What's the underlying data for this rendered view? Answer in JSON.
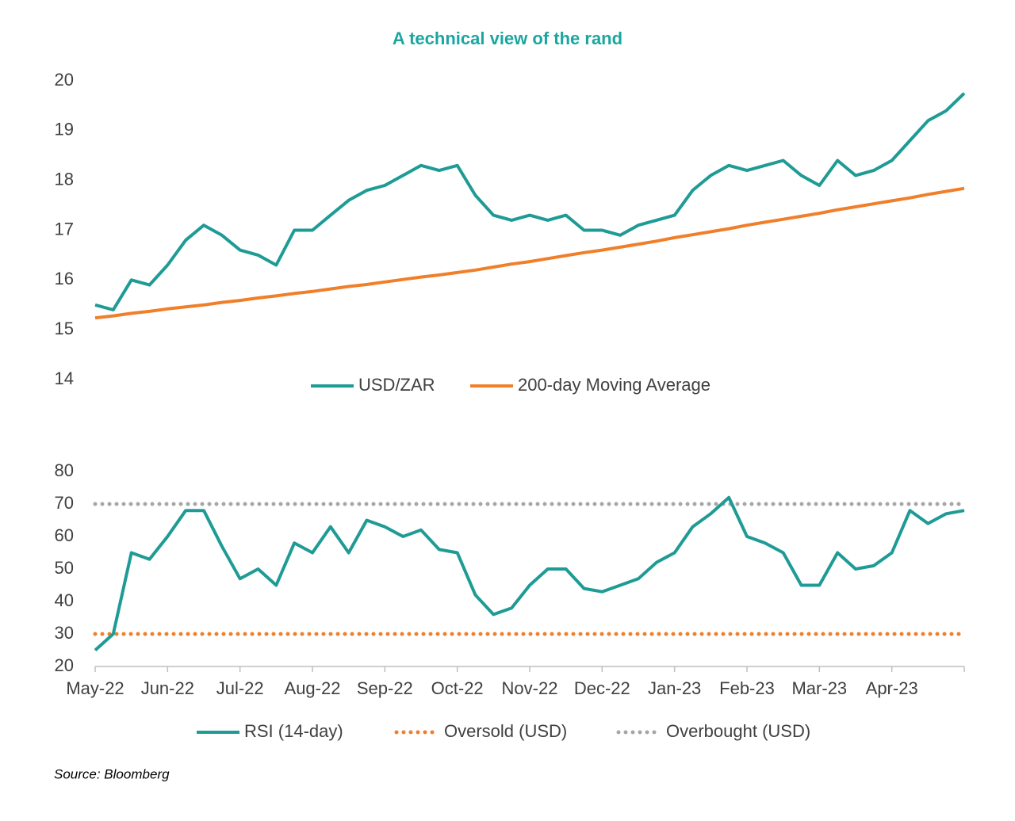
{
  "chart_data": [
    {
      "type": "line",
      "title": "A technical view of the rand",
      "ylim": [
        14,
        20
      ],
      "yticks": [
        14,
        15,
        16,
        17,
        18,
        19,
        20
      ],
      "series": [
        {
          "name": "USD/ZAR",
          "color": "#1f9b96",
          "style": "solid",
          "values": [
            15.5,
            15.4,
            16.0,
            15.9,
            16.3,
            16.8,
            17.1,
            16.9,
            16.6,
            16.5,
            16.3,
            17.0,
            17.0,
            17.3,
            17.6,
            17.8,
            17.9,
            18.1,
            18.3,
            18.2,
            18.3,
            17.7,
            17.3,
            17.2,
            17.3,
            17.2,
            17.3,
            17.0,
            17.0,
            16.9,
            17.1,
            17.2,
            17.3,
            17.8,
            18.1,
            18.3,
            18.2,
            18.3,
            18.4,
            18.1,
            17.9,
            18.4,
            18.1,
            18.2,
            18.4,
            18.8,
            19.2,
            19.4,
            19.75
          ]
        },
        {
          "name": "200-day Moving Average",
          "color": "#f07f2a",
          "style": "solid",
          "values": [
            15.24,
            15.28,
            15.33,
            15.37,
            15.42,
            15.46,
            15.5,
            15.55,
            15.59,
            15.64,
            15.68,
            15.73,
            15.77,
            15.82,
            15.87,
            15.91,
            15.96,
            16.01,
            16.06,
            16.1,
            16.15,
            16.2,
            16.26,
            16.32,
            16.37,
            16.43,
            16.49,
            16.55,
            16.6,
            16.66,
            16.72,
            16.78,
            16.85,
            16.91,
            16.97,
            17.03,
            17.1,
            17.16,
            17.22,
            17.28,
            17.34,
            17.41,
            17.47,
            17.53,
            17.59,
            17.65,
            17.72,
            17.78,
            17.84
          ]
        }
      ]
    },
    {
      "type": "line",
      "categories": [
        "May-22",
        null,
        null,
        null,
        "Jun-22",
        null,
        null,
        null,
        "Jul-22",
        null,
        null,
        null,
        "Aug-22",
        null,
        null,
        null,
        "Sep-22",
        null,
        null,
        null,
        "Oct-22",
        null,
        null,
        null,
        "Nov-22",
        null,
        null,
        null,
        "Dec-22",
        null,
        null,
        null,
        "Jan-23",
        null,
        null,
        null,
        "Feb-23",
        null,
        null,
        null,
        "Mar-23",
        null,
        null,
        null,
        "Apr-23",
        null,
        null,
        null,
        null
      ],
      "ylim": [
        20,
        80
      ],
      "yticks": [
        20,
        30,
        40,
        50,
        60,
        70,
        80
      ],
      "series": [
        {
          "name": "RSI (14-day)",
          "color": "#1f9b96",
          "style": "solid",
          "values": [
            25,
            30,
            55,
            53,
            60,
            68,
            68,
            57,
            47,
            50,
            45,
            58,
            55,
            63,
            55,
            65,
            63,
            60,
            62,
            56,
            55,
            42,
            36,
            38,
            45,
            50,
            50,
            44,
            43,
            45,
            47,
            52,
            55,
            63,
            67,
            72,
            60,
            58,
            55,
            45,
            45,
            55,
            50,
            51,
            55,
            68,
            64,
            67,
            68
          ]
        },
        {
          "name": "Oversold (USD)",
          "color": "#f07f2a",
          "style": "dotted",
          "values": [
            30,
            30,
            30,
            30,
            30,
            30,
            30,
            30,
            30,
            30,
            30,
            30,
            30,
            30,
            30,
            30,
            30,
            30,
            30,
            30,
            30,
            30,
            30,
            30,
            30,
            30,
            30,
            30,
            30,
            30,
            30,
            30,
            30,
            30,
            30,
            30,
            30,
            30,
            30,
            30,
            30,
            30,
            30,
            30,
            30,
            30,
            30,
            30,
            30
          ]
        },
        {
          "name": "Overbought (USD)",
          "color": "#a6a6a6",
          "style": "dotted",
          "values": [
            70,
            70,
            70,
            70,
            70,
            70,
            70,
            70,
            70,
            70,
            70,
            70,
            70,
            70,
            70,
            70,
            70,
            70,
            70,
            70,
            70,
            70,
            70,
            70,
            70,
            70,
            70,
            70,
            70,
            70,
            70,
            70,
            70,
            70,
            70,
            70,
            70,
            70,
            70,
            70,
            70,
            70,
            70,
            70,
            70,
            70,
            70,
            70,
            70
          ]
        }
      ]
    }
  ],
  "source": "Source: Bloomberg"
}
